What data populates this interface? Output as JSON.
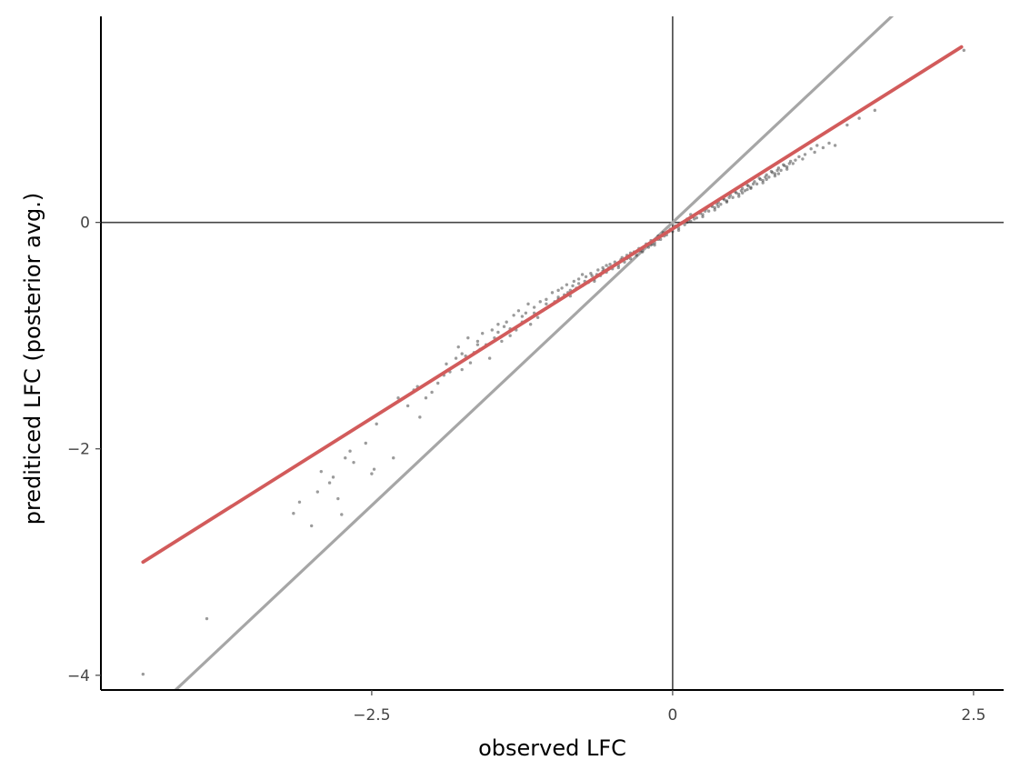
{
  "chart_data": {
    "type": "scatter",
    "title": "",
    "xlabel": "observed LFC",
    "ylabel": "prediticed LFC (posterior avg.)",
    "xlim": [
      -4.75,
      2.75
    ],
    "ylim": [
      -4.13,
      1.82
    ],
    "x_ticks": [
      {
        "value": -2.5,
        "label": "−2.5"
      },
      {
        "value": 0,
        "label": "0"
      },
      {
        "value": 2.5,
        "label": "2.5"
      }
    ],
    "y_ticks": [
      {
        "value": -4,
        "label": "−4"
      },
      {
        "value": -2,
        "label": "−2"
      },
      {
        "value": 0,
        "label": "0"
      }
    ],
    "grid": false,
    "reference_lines": [
      {
        "kind": "hline",
        "value": 0,
        "color": "#444444"
      },
      {
        "kind": "vline",
        "value": 0,
        "color": "#444444"
      },
      {
        "kind": "identity",
        "slope": 1,
        "intercept": 0,
        "color": "#a6a6a6"
      }
    ],
    "fit_line": {
      "x": [
        -4.4,
        2.4
      ],
      "y": [
        -3.0,
        1.55
      ],
      "color": "#d25b5b"
    },
    "points_color": "#222222",
    "points": [
      [
        -4.4,
        -3.99
      ],
      [
        -3.87,
        -3.5
      ],
      [
        -3.15,
        -2.57
      ],
      [
        -3.1,
        -2.47
      ],
      [
        -3.0,
        -2.68
      ],
      [
        -2.95,
        -2.38
      ],
      [
        -2.92,
        -2.2
      ],
      [
        -2.85,
        -2.3
      ],
      [
        -2.82,
        -2.25
      ],
      [
        -2.78,
        -2.44
      ],
      [
        -2.75,
        -2.58
      ],
      [
        -2.72,
        -2.08
      ],
      [
        -2.68,
        -2.02
      ],
      [
        -2.65,
        -2.12
      ],
      [
        -2.55,
        -1.95
      ],
      [
        -2.5,
        -2.22
      ],
      [
        -2.48,
        -2.18
      ],
      [
        -2.46,
        -1.78
      ],
      [
        -2.32,
        -2.08
      ],
      [
        -2.28,
        -1.55
      ],
      [
        -2.2,
        -1.62
      ],
      [
        -2.15,
        -1.48
      ],
      [
        -2.12,
        -1.45
      ],
      [
        -2.1,
        -1.72
      ],
      [
        -2.05,
        -1.55
      ],
      [
        -2.0,
        -1.5
      ],
      [
        -1.98,
        -1.38
      ],
      [
        -1.95,
        -1.42
      ],
      [
        -1.9,
        -1.35
      ],
      [
        -1.88,
        -1.25
      ],
      [
        -1.85,
        -1.32
      ],
      [
        -1.8,
        -1.2
      ],
      [
        -1.78,
        -1.1
      ],
      [
        -1.75,
        -1.3
      ],
      [
        -1.72,
        -1.18
      ],
      [
        -1.7,
        -1.02
      ],
      [
        -1.68,
        -1.24
      ],
      [
        -1.65,
        -1.15
      ],
      [
        -1.62,
        -1.05
      ],
      [
        -1.6,
        -1.12
      ],
      [
        -1.58,
        -0.98
      ],
      [
        -1.55,
        -1.08
      ],
      [
        -1.52,
        -1.2
      ],
      [
        -1.5,
        -0.95
      ],
      [
        -1.48,
        -1.02
      ],
      [
        -1.45,
        -0.9
      ],
      [
        -1.42,
        -1.05
      ],
      [
        -1.4,
        -0.92
      ],
      [
        -1.38,
        -0.88
      ],
      [
        -1.35,
        -1.0
      ],
      [
        -1.32,
        -0.82
      ],
      [
        -1.3,
        -0.95
      ],
      [
        -1.28,
        -0.78
      ],
      [
        -1.25,
        -0.88
      ],
      [
        -1.22,
        -0.8
      ],
      [
        -1.2,
        -0.72
      ],
      [
        -1.18,
        -0.9
      ],
      [
        -1.15,
        -0.75
      ],
      [
        -1.12,
        -0.84
      ],
      [
        -1.1,
        -0.7
      ],
      [
        -1.08,
        -0.78
      ],
      [
        -1.05,
        -0.68
      ],
      [
        -1.02,
        -0.74
      ],
      [
        -1.0,
        -0.62
      ],
      [
        -0.98,
        -0.7
      ],
      [
        -0.95,
        -0.66
      ],
      [
        -0.92,
        -0.58
      ],
      [
        -0.9,
        -0.64
      ],
      [
        -0.88,
        -0.55
      ],
      [
        -0.85,
        -0.6
      ],
      [
        -0.82,
        -0.52
      ],
      [
        -0.8,
        -0.58
      ],
      [
        -0.78,
        -0.5
      ],
      [
        -0.75,
        -0.56
      ],
      [
        -0.72,
        -0.48
      ],
      [
        -0.7,
        -0.53
      ],
      [
        -0.68,
        -0.45
      ],
      [
        -0.65,
        -0.5
      ],
      [
        -0.62,
        -0.42
      ],
      [
        -0.6,
        -0.47
      ],
      [
        -0.58,
        -0.4
      ],
      [
        -0.55,
        -0.44
      ],
      [
        -0.52,
        -0.37
      ],
      [
        -0.5,
        -0.41
      ],
      [
        -0.48,
        -0.35
      ],
      [
        -0.45,
        -0.38
      ],
      [
        -0.42,
        -0.31
      ],
      [
        -0.4,
        -0.35
      ],
      [
        -0.38,
        -0.29
      ],
      [
        -0.35,
        -0.32
      ],
      [
        -0.32,
        -0.26
      ],
      [
        -0.3,
        -0.29
      ],
      [
        -0.28,
        -0.23
      ],
      [
        -0.25,
        -0.26
      ],
      [
        -0.22,
        -0.19
      ],
      [
        -0.2,
        -0.22
      ],
      [
        -0.18,
        -0.16
      ],
      [
        -0.15,
        -0.18
      ],
      [
        -0.12,
        -0.12
      ],
      [
        -0.1,
        -0.15
      ],
      [
        -0.08,
        -0.09
      ],
      [
        -0.05,
        -0.11
      ],
      [
        -0.02,
        -0.06
      ],
      [
        0.0,
        -0.08
      ],
      [
        0.02,
        -0.03
      ],
      [
        0.05,
        -0.05
      ],
      [
        0.08,
        0.0
      ],
      [
        0.1,
        -0.02
      ],
      [
        0.12,
        0.03
      ],
      [
        0.15,
        0.01
      ],
      [
        0.18,
        0.06
      ],
      [
        0.2,
        0.04
      ],
      [
        0.22,
        0.09
      ],
      [
        0.25,
        0.07
      ],
      [
        0.28,
        0.12
      ],
      [
        0.3,
        0.1
      ],
      [
        0.32,
        0.15
      ],
      [
        0.35,
        0.13
      ],
      [
        0.38,
        0.18
      ],
      [
        0.4,
        0.16
      ],
      [
        0.42,
        0.21
      ],
      [
        0.45,
        0.19
      ],
      [
        0.48,
        0.24
      ],
      [
        0.5,
        0.22
      ],
      [
        0.52,
        0.27
      ],
      [
        0.55,
        0.25
      ],
      [
        0.58,
        0.3
      ],
      [
        0.6,
        0.28
      ],
      [
        0.62,
        0.33
      ],
      [
        0.65,
        0.31
      ],
      [
        0.68,
        0.36
      ],
      [
        0.7,
        0.34
      ],
      [
        0.72,
        0.39
      ],
      [
        0.75,
        0.37
      ],
      [
        0.78,
        0.42
      ],
      [
        0.8,
        0.4
      ],
      [
        0.82,
        0.45
      ],
      [
        0.85,
        0.43
      ],
      [
        0.88,
        0.48
      ],
      [
        0.9,
        0.46
      ],
      [
        0.92,
        0.51
      ],
      [
        0.95,
        0.49
      ],
      [
        0.98,
        0.54
      ],
      [
        1.0,
        0.52
      ],
      [
        1.05,
        0.58
      ],
      [
        1.1,
        0.6
      ],
      [
        1.15,
        0.65
      ],
      [
        1.2,
        0.68
      ],
      [
        1.25,
        0.66
      ],
      [
        1.3,
        0.7
      ],
      [
        1.35,
        0.68
      ],
      [
        1.45,
        0.86
      ],
      [
        1.55,
        0.92
      ],
      [
        1.68,
        0.99
      ],
      [
        2.42,
        1.52
      ],
      [
        -0.95,
        -0.6
      ],
      [
        -0.87,
        -0.62
      ],
      [
        -0.83,
        -0.56
      ],
      [
        -0.73,
        -0.52
      ],
      [
        -0.67,
        -0.47
      ],
      [
        -0.63,
        -0.46
      ],
      [
        -0.57,
        -0.42
      ],
      [
        -0.53,
        -0.4
      ],
      [
        -0.47,
        -0.37
      ],
      [
        -0.43,
        -0.33
      ],
      [
        -0.37,
        -0.31
      ],
      [
        -0.33,
        -0.28
      ],
      [
        -0.27,
        -0.25
      ],
      [
        -0.23,
        -0.21
      ],
      [
        -0.17,
        -0.19
      ],
      [
        -0.13,
        -0.14
      ],
      [
        -0.07,
        -0.12
      ],
      [
        -0.03,
        -0.08
      ],
      [
        0.03,
        -0.04
      ],
      [
        0.07,
        -0.01
      ],
      [
        0.13,
        0.02
      ],
      [
        0.17,
        0.05
      ],
      [
        0.23,
        0.08
      ],
      [
        0.27,
        0.1
      ],
      [
        0.33,
        0.14
      ],
      [
        0.37,
        0.16
      ],
      [
        0.43,
        0.2
      ],
      [
        0.47,
        0.22
      ],
      [
        0.53,
        0.26
      ],
      [
        0.57,
        0.28
      ],
      [
        0.63,
        0.32
      ],
      [
        0.67,
        0.34
      ],
      [
        0.73,
        0.38
      ],
      [
        0.77,
        0.4
      ],
      [
        0.83,
        0.44
      ],
      [
        0.87,
        0.46
      ],
      [
        0.93,
        0.5
      ],
      [
        0.97,
        0.52
      ],
      [
        -1.45,
        -0.97
      ],
      [
        -1.25,
        -0.83
      ],
      [
        -1.15,
        -0.8
      ],
      [
        -1.05,
        -0.72
      ],
      [
        -0.78,
        -0.54
      ],
      [
        -0.58,
        -0.43
      ],
      [
        -0.38,
        -0.32
      ],
      [
        -0.18,
        -0.2
      ],
      [
        0.18,
        0.03
      ],
      [
        0.38,
        0.14
      ],
      [
        0.58,
        0.26
      ],
      [
        0.78,
        0.38
      ],
      [
        -1.75,
        -1.16
      ],
      [
        -1.62,
        -1.08
      ],
      [
        -1.35,
        -0.94
      ],
      [
        -0.12,
        -0.15
      ],
      [
        0.12,
        0.0
      ],
      [
        0.62,
        0.29
      ],
      [
        0.88,
        0.43
      ],
      [
        1.08,
        0.56
      ],
      [
        1.18,
        0.62
      ],
      [
        -0.45,
        -0.4
      ],
      [
        -0.25,
        -0.23
      ],
      [
        0.05,
        -0.07
      ],
      [
        0.25,
        0.05
      ],
      [
        0.45,
        0.18
      ],
      [
        0.65,
        0.3
      ],
      [
        0.85,
        0.41
      ],
      [
        -0.65,
        -0.52
      ],
      [
        -0.85,
        -0.65
      ],
      [
        -1.05,
        -0.76
      ],
      [
        0.95,
        0.47
      ],
      [
        -0.55,
        -0.38
      ],
      [
        0.55,
        0.23
      ],
      [
        -0.35,
        -0.27
      ],
      [
        0.35,
        0.11
      ],
      [
        -0.15,
        -0.2
      ],
      [
        0.15,
        0.07
      ],
      [
        -0.75,
        -0.46
      ],
      [
        0.75,
        0.35
      ],
      [
        -0.95,
        -0.68
      ],
      [
        1.02,
        0.55
      ]
    ]
  }
}
